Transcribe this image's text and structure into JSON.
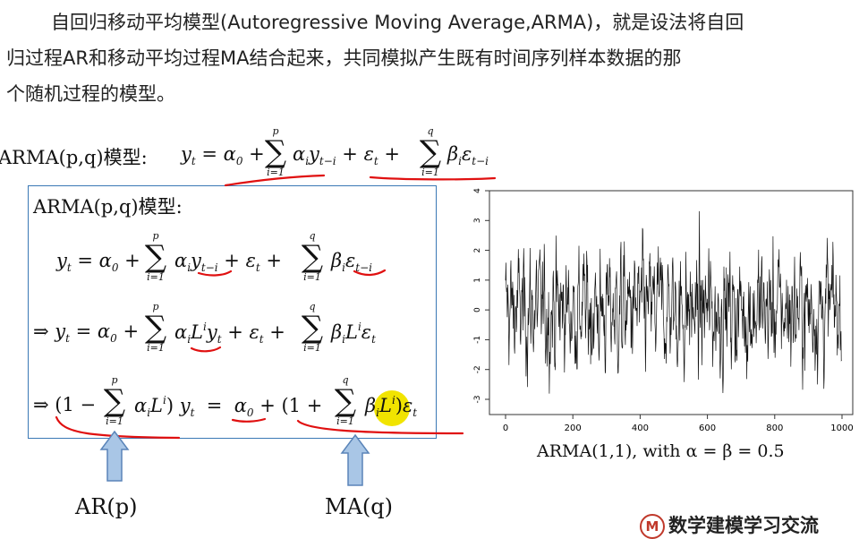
{
  "intro": {
    "line1": "自回归移动平均模型(Autoregressive Moving Average,ARMA)，就是设法将自回",
    "line2": "归过程AR和移动平均过程MA结合起来，共同模拟产生既有时间序列样本数据的那",
    "line3": "个随机过程的模型。"
  },
  "headline": {
    "label": "ARMA(p,q)模型:",
    "formula": "y_t = α_0 + Σ_{i=1}^{p} α_i y_{t−i} + ε_t + Σ_{i=1}^{q} β_i ε_{t−i}"
  },
  "box": {
    "title": "ARMA(p,q)模型:",
    "eq1": "y_t = α_0 + Σ_{i=1}^{p} α_i y_{t−i} + ε_t + Σ_{i=1}^{q} β_i ε_{t−i}",
    "eq2": "⇒ y_t = α_0 + Σ_{i=1}^{p} α_i L^i y_t + ε_t + Σ_{i=1}^{q} β_i L^i ε_t",
    "eq3": "⇒ (1 − Σ_{i=1}^{p} α_i L^i) y_t = α_0 + (1 + Σ_{i=1}^{q} β_i L^i) ε_t"
  },
  "labels": {
    "ar": "AR(p)",
    "ma": "MA(q)"
  },
  "chart": {
    "caption": "ARMA(1,1), with α = β = 0.5",
    "x_ticks": [
      "0",
      "200",
      "400",
      "600",
      "800",
      "1000"
    ],
    "y_ticks": [
      "4",
      "3",
      "2",
      "1",
      "0",
      "-1",
      "-2",
      "-3"
    ]
  },
  "chart_data": {
    "type": "line",
    "title": "",
    "xlabel": "",
    "ylabel": "",
    "x_range": [
      0,
      1000
    ],
    "ylim": [
      -3,
      4
    ],
    "x_ticks": [
      0,
      200,
      400,
      600,
      800,
      1000
    ],
    "y_ticks": [
      -3,
      -2,
      -1,
      0,
      1,
      2,
      3,
      4
    ],
    "n_points": 1000,
    "series": [
      {
        "model": "ARMA(1,1)",
        "alpha": 0.5,
        "beta": 0.5
      }
    ],
    "grid": false
  },
  "watermark": {
    "logo": "M",
    "text": "数学建模学习交流"
  },
  "colors": {
    "box_border": "#3a78b5",
    "annotation_red": "#e01010",
    "arrow_fill": "#a9c6e6",
    "arrow_stroke": "#5a84b8",
    "highlight": "#f1e400"
  }
}
